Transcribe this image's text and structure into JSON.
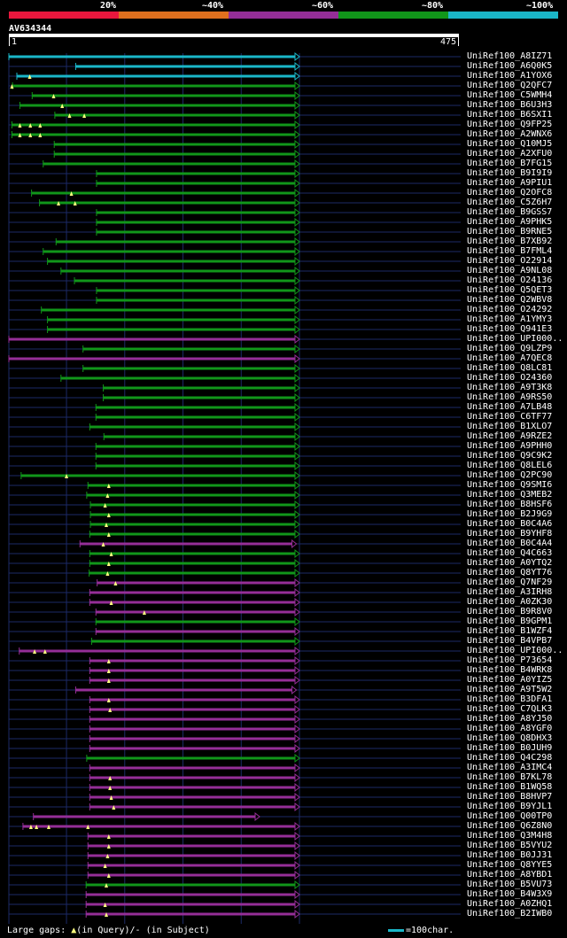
{
  "legend": {
    "percents": [
      "20%",
      "~40%",
      "~60%",
      "~80%",
      "~100%"
    ],
    "colors": [
      "#e8173d",
      "#e0701e",
      "#952e97",
      "#11961a",
      "#1ab6c8"
    ]
  },
  "query": {
    "name": "AV634344",
    "start": "1",
    "end": "475",
    "length": 475
  },
  "footer": {
    "gaps_label": "Large gaps:",
    "query_gap": "(in Query)/",
    "subject_gap": "- (in Subject)",
    "scale_label": "=100char."
  },
  "hits": [
    {
      "name": "UniRef100_A8IZ71",
      "start": 1,
      "end": 475,
      "color": "cyan",
      "gaps": []
    },
    {
      "name": "UniRef100_A6Q0K5",
      "start": 110,
      "end": 475,
      "color": "cyan",
      "gaps": []
    },
    {
      "name": "UniRef100_A1YOX6",
      "start": 14,
      "end": 475,
      "color": "cyan",
      "gaps": [
        35
      ]
    },
    {
      "name": "UniRef100_Q2QFC7",
      "start": 7,
      "end": 475,
      "color": "green",
      "gaps": [
        6
      ]
    },
    {
      "name": "UniRef100_C5WMH4",
      "start": 39,
      "end": 475,
      "color": "green",
      "gaps": [
        74
      ]
    },
    {
      "name": "UniRef100_B6U3H3",
      "start": 19,
      "end": 475,
      "color": "green",
      "gaps": [
        88
      ]
    },
    {
      "name": "UniRef100_B6SXI1",
      "start": 76,
      "end": 475,
      "color": "green",
      "gaps": [
        100,
        124
      ]
    },
    {
      "name": "UniRef100_Q9FP25",
      "start": 6,
      "end": 475,
      "color": "green",
      "gaps": [
        19,
        36,
        52
      ]
    },
    {
      "name": "UniRef100_A2WNX6",
      "start": 6,
      "end": 475,
      "color": "green",
      "gaps": [
        19,
        36,
        52
      ]
    },
    {
      "name": "UniRef100_Q10MJ5",
      "start": 75,
      "end": 475,
      "color": "green",
      "gaps": []
    },
    {
      "name": "UniRef100_A2XFU0",
      "start": 75,
      "end": 475,
      "color": "green",
      "gaps": []
    },
    {
      "name": "UniRef100_B7FG15",
      "start": 57,
      "end": 475,
      "color": "green",
      "gaps": []
    },
    {
      "name": "UniRef100_B9I9I9",
      "start": 144,
      "end": 475,
      "color": "green",
      "gaps": []
    },
    {
      "name": "UniRef100_A9PIU1",
      "start": 144,
      "end": 475,
      "color": "green",
      "gaps": []
    },
    {
      "name": "UniRef100_Q2OFC8",
      "start": 38,
      "end": 475,
      "color": "green",
      "gaps": [
        103
      ]
    },
    {
      "name": "UniRef100_C5Z6H7",
      "start": 51,
      "end": 475,
      "color": "green",
      "gaps": [
        82,
        109
      ]
    },
    {
      "name": "UniRef100_B9GSS7",
      "start": 144,
      "end": 475,
      "color": "green",
      "gaps": []
    },
    {
      "name": "UniRef100_A9PHK5",
      "start": 144,
      "end": 475,
      "color": "green",
      "gaps": []
    },
    {
      "name": "UniRef100_B9RNE5",
      "start": 144,
      "end": 475,
      "color": "green",
      "gaps": []
    },
    {
      "name": "UniRef100_B7XB92",
      "start": 78,
      "end": 475,
      "color": "green",
      "gaps": []
    },
    {
      "name": "UniRef100_B7FML4",
      "start": 57,
      "end": 475,
      "color": "green",
      "gaps": []
    },
    {
      "name": "UniRef100_O22914",
      "start": 64,
      "end": 475,
      "color": "green",
      "gaps": []
    },
    {
      "name": "UniRef100_A9NL08",
      "start": 86,
      "end": 475,
      "color": "green",
      "gaps": []
    },
    {
      "name": "UniRef100_O24136",
      "start": 108,
      "end": 475,
      "color": "green",
      "gaps": []
    },
    {
      "name": "UniRef100_Q5QET3",
      "start": 144,
      "end": 475,
      "color": "green",
      "gaps": []
    },
    {
      "name": "UniRef100_Q2WBV8",
      "start": 144,
      "end": 475,
      "color": "green",
      "gaps": []
    },
    {
      "name": "UniRef100_O24292",
      "start": 54,
      "end": 475,
      "color": "green",
      "gaps": []
    },
    {
      "name": "UniRef100_A1YMY3",
      "start": 64,
      "end": 475,
      "color": "green",
      "gaps": []
    },
    {
      "name": "UniRef100_Q941E3",
      "start": 64,
      "end": 475,
      "color": "green",
      "gaps": []
    },
    {
      "name": "UniRef100_UPI000..",
      "start": 1,
      "end": 475,
      "color": "purple",
      "gaps": []
    },
    {
      "name": "UniRef100_Q9LZP9",
      "start": 122,
      "end": 475,
      "color": "green",
      "gaps": []
    },
    {
      "name": "UniRef100_A7QEC8",
      "start": 1,
      "end": 475,
      "color": "purple",
      "gaps": []
    },
    {
      "name": "UniRef100_Q8LC81",
      "start": 122,
      "end": 475,
      "color": "green",
      "gaps": []
    },
    {
      "name": "UniRef100_O24360",
      "start": 86,
      "end": 475,
      "color": "green",
      "gaps": []
    },
    {
      "name": "UniRef100_A9T3K8",
      "start": 155,
      "end": 475,
      "color": "green",
      "gaps": []
    },
    {
      "name": "UniRef100_A9RS50",
      "start": 155,
      "end": 475,
      "color": "green",
      "gaps": []
    },
    {
      "name": "UniRef100_A7LB48",
      "start": 143,
      "end": 475,
      "color": "green",
      "gaps": []
    },
    {
      "name": "UniRef100_C6TF77",
      "start": 143,
      "end": 475,
      "color": "green",
      "gaps": []
    },
    {
      "name": "UniRef100_B1XLO7",
      "start": 133,
      "end": 475,
      "color": "green",
      "gaps": []
    },
    {
      "name": "UniRef100_A9RZE2",
      "start": 156,
      "end": 475,
      "color": "green",
      "gaps": []
    },
    {
      "name": "UniRef100_A9PHH0",
      "start": 143,
      "end": 475,
      "color": "green",
      "gaps": []
    },
    {
      "name": "UniRef100_Q9C9K2",
      "start": 143,
      "end": 475,
      "color": "green",
      "gaps": []
    },
    {
      "name": "UniRef100_Q8LEL6",
      "start": 143,
      "end": 475,
      "color": "green",
      "gaps": []
    },
    {
      "name": "UniRef100_Q2PC90",
      "start": 21,
      "end": 475,
      "color": "green",
      "gaps": [
        95
      ]
    },
    {
      "name": "UniRef100_Q9SMI6",
      "start": 130,
      "end": 475,
      "color": "green",
      "gaps": [
        164
      ]
    },
    {
      "name": "UniRef100_Q3MEB2",
      "start": 128,
      "end": 475,
      "color": "green",
      "gaps": [
        162
      ]
    },
    {
      "name": "UniRef100_B8HSF6",
      "start": 134,
      "end": 475,
      "color": "green",
      "gaps": [
        158
      ]
    },
    {
      "name": "UniRef100_B2J9G9",
      "start": 134,
      "end": 475,
      "color": "green",
      "gaps": [
        164
      ]
    },
    {
      "name": "UniRef100_B0C4A6",
      "start": 134,
      "end": 475,
      "color": "green",
      "gaps": [
        160
      ]
    },
    {
      "name": "UniRef100_B9YHF8",
      "start": 133,
      "end": 475,
      "color": "green",
      "gaps": [
        164
      ]
    },
    {
      "name": "UniRef100_B0C4A4",
      "start": 117,
      "end": 470,
      "color": "purple",
      "gaps": [
        155
      ]
    },
    {
      "name": "UniRef100_Q4C663",
      "start": 133,
      "end": 475,
      "color": "green",
      "gaps": [
        168
      ]
    },
    {
      "name": "UniRef100_A0YTQ2",
      "start": 133,
      "end": 475,
      "color": "green",
      "gaps": [
        164
      ]
    },
    {
      "name": "UniRef100_Q8YT76",
      "start": 132,
      "end": 475,
      "color": "green",
      "gaps": [
        162
      ]
    },
    {
      "name": "UniRef100_Q7NF29",
      "start": 145,
      "end": 475,
      "color": "purple",
      "gaps": [
        175
      ]
    },
    {
      "name": "UniRef100_A3IRH8",
      "start": 133,
      "end": 475,
      "color": "purple",
      "gaps": []
    },
    {
      "name": "UniRef100_A0ZK30",
      "start": 133,
      "end": 475,
      "color": "purple",
      "gaps": [
        168
      ]
    },
    {
      "name": "UniRef100_B9R8V0",
      "start": 143,
      "end": 475,
      "color": "purple",
      "gaps": [
        222
      ]
    },
    {
      "name": "UniRef100_B9GPM1",
      "start": 143,
      "end": 475,
      "color": "green",
      "gaps": []
    },
    {
      "name": "UniRef100_B1WZF4",
      "start": 143,
      "end": 475,
      "color": "purple",
      "gaps": []
    },
    {
      "name": "UniRef100_B4VPB7",
      "start": 136,
      "end": 475,
      "color": "green",
      "gaps": []
    },
    {
      "name": "UniRef100_UPI000..",
      "start": 18,
      "end": 475,
      "color": "purple",
      "gaps": [
        43,
        60
      ]
    },
    {
      "name": "UniRef100_P73654",
      "start": 133,
      "end": 475,
      "color": "purple",
      "gaps": [
        164
      ]
    },
    {
      "name": "UniRef100_B4WRK8",
      "start": 133,
      "end": 475,
      "color": "purple",
      "gaps": [
        164
      ]
    },
    {
      "name": "UniRef100_A0YIZ5",
      "start": 133,
      "end": 475,
      "color": "purple",
      "gaps": [
        164
      ]
    },
    {
      "name": "UniRef100_A9T5W2",
      "start": 110,
      "end": 470,
      "color": "purple",
      "gaps": []
    },
    {
      "name": "UniRef100_B3DFA1",
      "start": 133,
      "end": 475,
      "color": "purple",
      "gaps": [
        164
      ]
    },
    {
      "name": "UniRef100_C7QLK3",
      "start": 133,
      "end": 475,
      "color": "purple",
      "gaps": [
        166
      ]
    },
    {
      "name": "UniRef100_A8YJ50",
      "start": 133,
      "end": 475,
      "color": "purple",
      "gaps": []
    },
    {
      "name": "UniRef100_A8YGF0",
      "start": 133,
      "end": 475,
      "color": "purple",
      "gaps": []
    },
    {
      "name": "UniRef100_Q8DHX3",
      "start": 133,
      "end": 475,
      "color": "purple",
      "gaps": []
    },
    {
      "name": "UniRef100_B0JUH9",
      "start": 133,
      "end": 475,
      "color": "purple",
      "gaps": []
    },
    {
      "name": "UniRef100_Q4C298",
      "start": 128,
      "end": 475,
      "color": "green",
      "gaps": []
    },
    {
      "name": "UniRef100_A3IMC4",
      "start": 133,
      "end": 475,
      "color": "purple",
      "gaps": []
    },
    {
      "name": "UniRef100_B7KL78",
      "start": 133,
      "end": 475,
      "color": "purple",
      "gaps": [
        166
      ]
    },
    {
      "name": "UniRef100_B1WQ58",
      "start": 133,
      "end": 475,
      "color": "purple",
      "gaps": [
        166
      ]
    },
    {
      "name": "UniRef100_B8HVP7",
      "start": 133,
      "end": 475,
      "color": "purple",
      "gaps": [
        168
      ]
    },
    {
      "name": "UniRef100_B9YJL1",
      "start": 133,
      "end": 475,
      "color": "purple",
      "gaps": [
        172
      ]
    },
    {
      "name": "UniRef100_Q00TP0",
      "start": 41,
      "end": 410,
      "color": "purple",
      "gaps": []
    },
    {
      "name": "UniRef100_Q6Z8N0",
      "start": 24,
      "end": 475,
      "color": "purple",
      "gaps": [
        37,
        46,
        66,
        130
      ]
    },
    {
      "name": "UniRef100_Q3M4H8",
      "start": 130,
      "end": 475,
      "color": "purple",
      "gaps": [
        164
      ]
    },
    {
      "name": "UniRef100_B5VYU2",
      "start": 130,
      "end": 475,
      "color": "purple",
      "gaps": [
        164
      ]
    },
    {
      "name": "UniRef100_B0JJ31",
      "start": 130,
      "end": 475,
      "color": "purple",
      "gaps": [
        162
      ]
    },
    {
      "name": "UniRef100_Q8YYE5",
      "start": 130,
      "end": 475,
      "color": "purple",
      "gaps": [
        158
      ]
    },
    {
      "name": "UniRef100_A8YBD1",
      "start": 130,
      "end": 475,
      "color": "purple",
      "gaps": [
        164
      ]
    },
    {
      "name": "UniRef100_B5VU73",
      "start": 127,
      "end": 475,
      "color": "green",
      "gaps": [
        160
      ]
    },
    {
      "name": "UniRef100_B4W3X9",
      "start": 127,
      "end": 475,
      "color": "purple",
      "gaps": []
    },
    {
      "name": "UniRef100_A0ZHQ1",
      "start": 127,
      "end": 475,
      "color": "purple",
      "gaps": [
        158
      ]
    },
    {
      "name": "UniRef100_B2IWB0",
      "start": 127,
      "end": 475,
      "color": "purple",
      "gaps": [
        160
      ]
    }
  ]
}
